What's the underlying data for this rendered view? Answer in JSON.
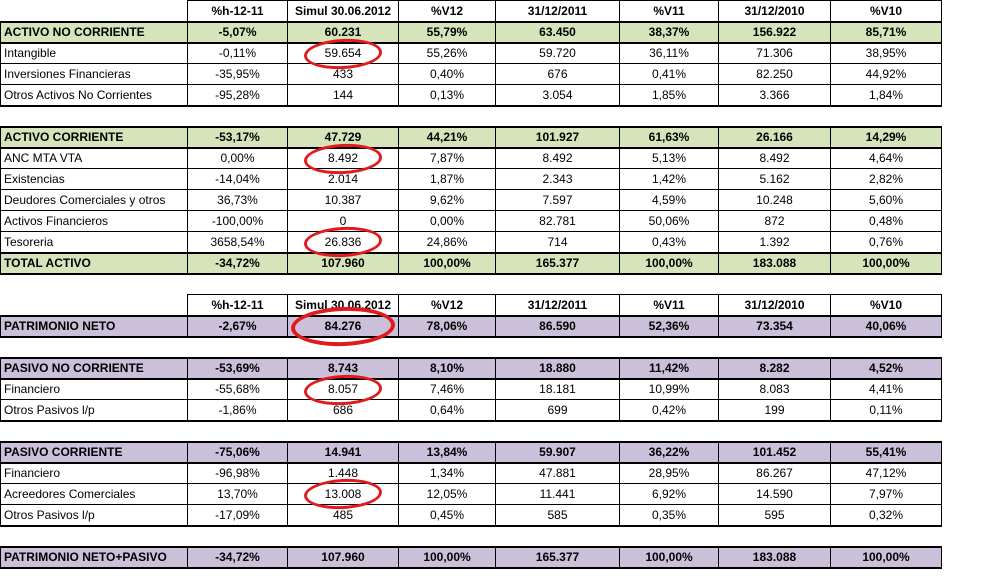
{
  "colors": {
    "section_green": "#d6e4bc",
    "section_purple": "#cbc0d9",
    "circle_red": "#e01b1b",
    "grid_black": "#000000"
  },
  "sheet": {
    "column_count": 8,
    "column_headers": [
      "",
      "%h-12-11",
      "Simul 30.06.2012",
      "%V12",
      "31/12/2011",
      "%V11",
      "31/12/2010",
      "%V10"
    ],
    "rows": [
      {
        "type": "header",
        "cells": [
          "",
          "%h-12-11",
          "Simul 30.06.2012",
          "%V12",
          "31/12/2011",
          "%V11",
          "31/12/2010",
          "%V10"
        ]
      },
      {
        "type": "section",
        "theme": "green",
        "cells": [
          "ACTIVO NO CORRIENTE",
          "-5,07%",
          "60.231",
          "55,79%",
          "63.450",
          "38,37%",
          "156.922",
          "85,71%"
        ]
      },
      {
        "type": "item",
        "cells": [
          "Intangible",
          "-0,11%",
          "59.654",
          "55,26%",
          "59.720",
          "36,11%",
          "71.306",
          "38,95%"
        ],
        "circled": 2
      },
      {
        "type": "item",
        "cells": [
          "Inversiones Financieras",
          "-35,95%",
          "433",
          "0,40%",
          "676",
          "0,41%",
          "82.250",
          "44,92%"
        ]
      },
      {
        "type": "item",
        "cells": [
          "Otros Activos No Corrientes",
          "-95,28%",
          "144",
          "0,13%",
          "3.054",
          "1,85%",
          "3.366",
          "1,84%"
        ]
      },
      {
        "type": "blank"
      },
      {
        "type": "section",
        "theme": "green",
        "cells": [
          "ACTIVO CORRIENTE",
          "-53,17%",
          "47.729",
          "44,21%",
          "101.927",
          "61,63%",
          "26.166",
          "14,29%"
        ]
      },
      {
        "type": "item",
        "cells": [
          "ANC MTA VTA",
          "0,00%",
          "8.492",
          "7,87%",
          "8.492",
          "5,13%",
          "8.492",
          "4,64%"
        ],
        "circled": 2
      },
      {
        "type": "item",
        "cells": [
          "Existencias",
          "-14,04%",
          "2.014",
          "1,87%",
          "2.343",
          "1,42%",
          "5.162",
          "2,82%"
        ]
      },
      {
        "type": "item",
        "cells": [
          "Deudores Comerciales y otros",
          "36,73%",
          "10.387",
          "9,62%",
          "7.597",
          "4,59%",
          "10.248",
          "5,60%"
        ]
      },
      {
        "type": "item",
        "cells": [
          "Activos Financieros",
          "-100,00%",
          "0",
          "0,00%",
          "82.781",
          "50,06%",
          "872",
          "0,48%"
        ]
      },
      {
        "type": "item",
        "cells": [
          "Tesoreria",
          "3658,54%",
          "26.836",
          "24,86%",
          "714",
          "0,43%",
          "1.392",
          "0,76%"
        ],
        "circled": 2
      },
      {
        "type": "total",
        "theme": "green",
        "cells": [
          "TOTAL ACTIVO",
          "-34,72%",
          "107.960",
          "100,00%",
          "165.377",
          "100,00%",
          "183.088",
          "100,00%"
        ]
      },
      {
        "type": "blank"
      },
      {
        "type": "header",
        "cells": [
          "",
          "%h-12-11",
          "Simul 30.06.2012",
          "%V12",
          "31/12/2011",
          "%V11",
          "31/12/2010",
          "%V10"
        ]
      },
      {
        "type": "section",
        "theme": "purple",
        "cells": [
          "PATRIMONIO NETO",
          "-2,67%",
          "84.276",
          "78,06%",
          "86.590",
          "52,36%",
          "73.354",
          "40,06%"
        ],
        "circled": 2,
        "circle_size": "big"
      },
      {
        "type": "blank"
      },
      {
        "type": "section",
        "theme": "purple",
        "cells": [
          "PASIVO NO CORRIENTE",
          "-53,69%",
          "8.743",
          "8,10%",
          "18.880",
          "11,42%",
          "8.282",
          "4,52%"
        ]
      },
      {
        "type": "item",
        "cells": [
          "Financiero",
          "-55,68%",
          "8.057",
          "7,46%",
          "18.181",
          "10,99%",
          "8.083",
          "4,41%"
        ],
        "circled": 2
      },
      {
        "type": "item",
        "cells": [
          "Otros  Pasivos l/p",
          "-1,86%",
          "686",
          "0,64%",
          "699",
          "0,42%",
          "199",
          "0,11%"
        ]
      },
      {
        "type": "blank"
      },
      {
        "type": "section",
        "theme": "purple",
        "cells": [
          "PASIVO CORRIENTE",
          "-75,06%",
          "14.941",
          "13,84%",
          "59.907",
          "36,22%",
          "101.452",
          "55,41%"
        ]
      },
      {
        "type": "item",
        "cells": [
          "Financiero",
          "-96,98%",
          "1.448",
          "1,34%",
          "47.881",
          "28,95%",
          "86.267",
          "47,12%"
        ]
      },
      {
        "type": "item",
        "cells": [
          "Acreedores Comerciales",
          "13,70%",
          "13.008",
          "12,05%",
          "11.441",
          "6,92%",
          "14.590",
          "7,97%"
        ],
        "circled": 2
      },
      {
        "type": "item",
        "cells": [
          "Otros Pasivos l/p",
          "-17,09%",
          "485",
          "0,45%",
          "585",
          "0,35%",
          "595",
          "0,32%"
        ]
      },
      {
        "type": "blank"
      },
      {
        "type": "total",
        "theme": "purple",
        "cells": [
          "PATRIMONIO NETO+PASIVO",
          "-34,72%",
          "107.960",
          "100,00%",
          "165.377",
          "100,00%",
          "183.088",
          "100,00%"
        ]
      }
    ]
  }
}
